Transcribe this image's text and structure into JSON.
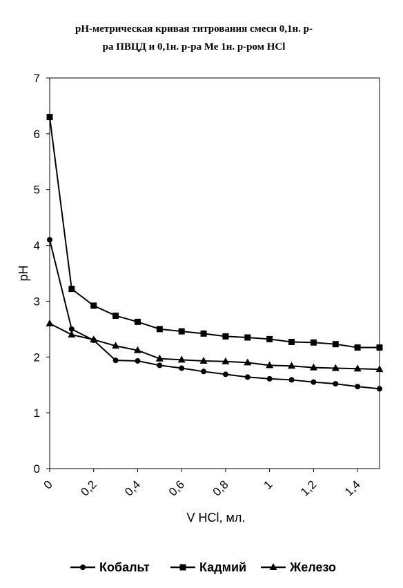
{
  "chart_data": {
    "type": "line",
    "title_lines": [
      "рН-метрическая кривая титрования смеси 0,1н. р-",
      "ра  ПВЦД и 0,1н. р-ра Ме 1н. р-ром HCl"
    ],
    "xlabel": "V HCl, мл.",
    "ylabel": "pH",
    "xlim": [
      0,
      1.5
    ],
    "ylim": [
      0,
      7
    ],
    "x_ticks": [
      0,
      0.2,
      0.4,
      0.6,
      0.8,
      1,
      1.2,
      1.4
    ],
    "x_tick_labels": [
      "0",
      "0,2",
      "0,4",
      "0,6",
      "0,8",
      "1",
      "1,2",
      "1,4"
    ],
    "y_ticks": [
      0,
      1,
      2,
      3,
      4,
      5,
      6,
      7
    ],
    "y_tick_labels": [
      "0",
      "1",
      "2",
      "3",
      "4",
      "5",
      "6",
      "7"
    ],
    "grid": false,
    "legend_position": "bottom",
    "x": [
      0,
      0.1,
      0.2,
      0.3,
      0.4,
      0.5,
      0.6,
      0.7,
      0.8,
      0.9,
      1.0,
      1.1,
      1.2,
      1.3,
      1.4,
      1.5
    ],
    "series": [
      {
        "name": "Кобальт",
        "marker": "circle",
        "values": [
          4.1,
          2.5,
          2.3,
          1.94,
          1.93,
          1.85,
          1.8,
          1.74,
          1.69,
          1.64,
          1.61,
          1.59,
          1.55,
          1.52,
          1.47,
          1.43
        ]
      },
      {
        "name": "Кадмий",
        "marker": "square",
        "values": [
          6.3,
          3.22,
          2.92,
          2.74,
          2.63,
          2.5,
          2.46,
          2.42,
          2.37,
          2.35,
          2.32,
          2.27,
          2.26,
          2.23,
          2.17,
          2.17
        ]
      },
      {
        "name": "Железо",
        "marker": "triangle",
        "values": [
          2.6,
          2.4,
          2.31,
          2.2,
          2.12,
          1.97,
          1.95,
          1.93,
          1.92,
          1.9,
          1.85,
          1.84,
          1.81,
          1.8,
          1.79,
          1.78
        ]
      }
    ]
  }
}
